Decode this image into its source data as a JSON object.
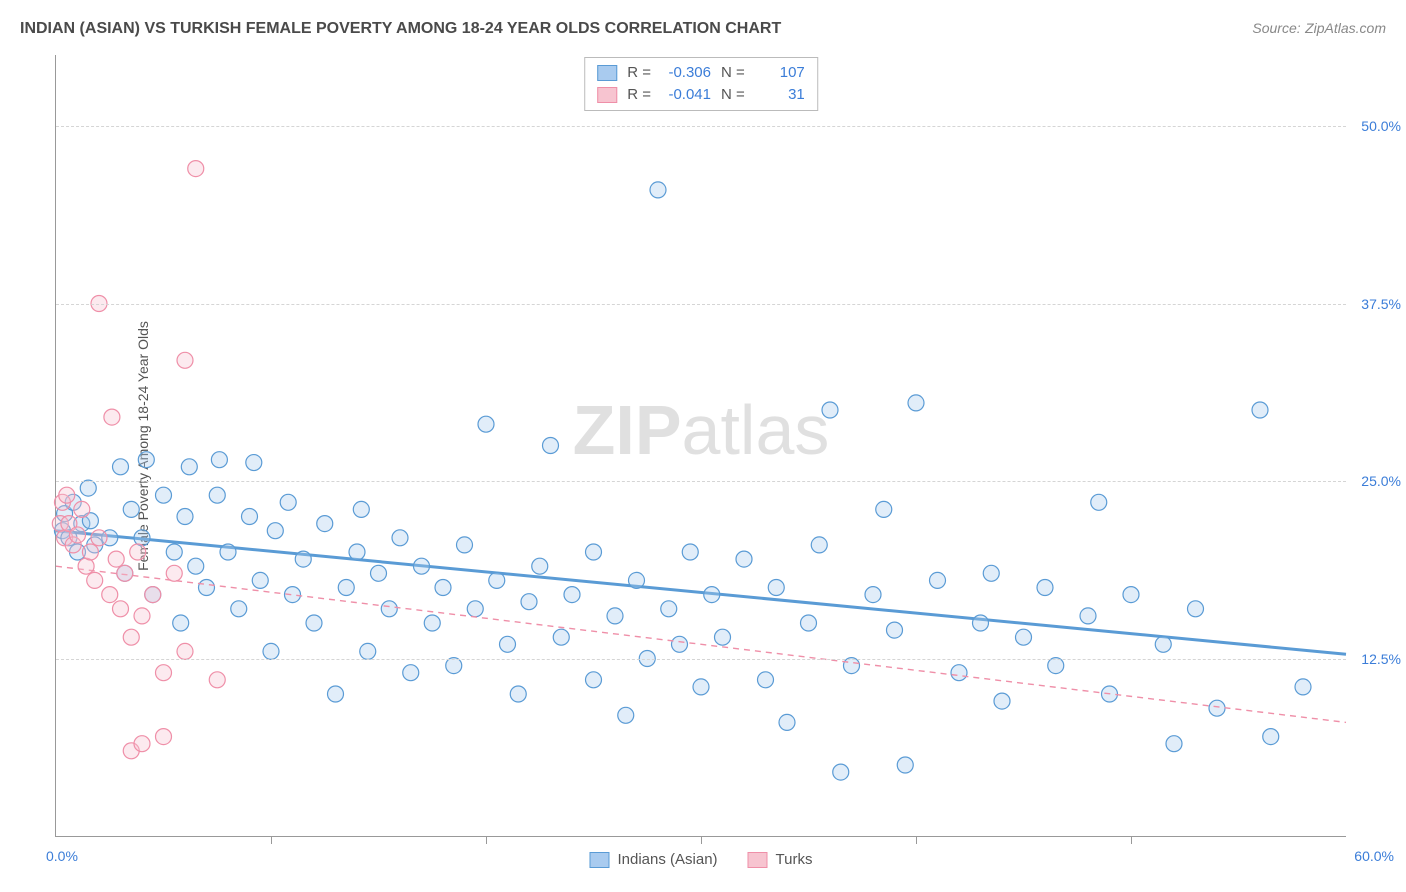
{
  "title": "INDIAN (ASIAN) VS TURKISH FEMALE POVERTY AMONG 18-24 YEAR OLDS CORRELATION CHART",
  "source_label": "Source:",
  "source_name": "ZipAtlas.com",
  "y_axis_label": "Female Poverty Among 18-24 Year Olds",
  "watermark_bold": "ZIP",
  "watermark_light": "atlas",
  "chart": {
    "type": "scatter",
    "xlim": [
      0,
      60
    ],
    "ylim": [
      0,
      55
    ],
    "x_origin_label": "0.0%",
    "x_max_label": "60.0%",
    "x_tick_positions": [
      10,
      20,
      30,
      40,
      50
    ],
    "y_ticks": [
      {
        "v": 12.5,
        "label": "12.5%"
      },
      {
        "v": 25.0,
        "label": "25.0%"
      },
      {
        "v": 37.5,
        "label": "37.5%"
      },
      {
        "v": 50.0,
        "label": "50.0%"
      }
    ],
    "background_color": "#ffffff",
    "grid_color": "#d5d5d5",
    "marker_radius": 8,
    "marker_fill_opacity": 0.35,
    "marker_stroke_width": 1.2,
    "series": [
      {
        "key": "indians",
        "name": "Indians (Asian)",
        "color_stroke": "#5a9bd5",
        "color_fill": "#a9cbef",
        "R_label": "R =",
        "R": "-0.306",
        "N_label": "N =",
        "N": "107",
        "trend": {
          "x1": 0,
          "y1": 21.5,
          "x2": 60,
          "y2": 12.8,
          "width": 3,
          "dash": "none"
        },
        "points": [
          [
            0.3,
            21.5
          ],
          [
            0.4,
            22.7
          ],
          [
            0.6,
            21.0
          ],
          [
            0.8,
            23.5
          ],
          [
            1.0,
            20.0
          ],
          [
            1.2,
            22.0
          ],
          [
            1.5,
            24.5
          ],
          [
            1.6,
            22.2
          ],
          [
            1.8,
            20.5
          ],
          [
            2.5,
            21.0
          ],
          [
            3.0,
            26.0
          ],
          [
            3.2,
            18.5
          ],
          [
            3.5,
            23.0
          ],
          [
            4.0,
            21.0
          ],
          [
            4.2,
            26.5
          ],
          [
            4.5,
            17.0
          ],
          [
            5.0,
            24.0
          ],
          [
            5.5,
            20.0
          ],
          [
            5.8,
            15.0
          ],
          [
            6.0,
            22.5
          ],
          [
            6.2,
            26.0
          ],
          [
            6.5,
            19.0
          ],
          [
            7.0,
            17.5
          ],
          [
            7.5,
            24.0
          ],
          [
            7.6,
            26.5
          ],
          [
            8.0,
            20.0
          ],
          [
            8.5,
            16.0
          ],
          [
            9.0,
            22.5
          ],
          [
            9.2,
            26.3
          ],
          [
            9.5,
            18.0
          ],
          [
            10.0,
            13.0
          ],
          [
            10.2,
            21.5
          ],
          [
            10.8,
            23.5
          ],
          [
            11.0,
            17.0
          ],
          [
            11.5,
            19.5
          ],
          [
            12.0,
            15.0
          ],
          [
            12.5,
            22.0
          ],
          [
            13.0,
            10.0
          ],
          [
            13.5,
            17.5
          ],
          [
            14.0,
            20.0
          ],
          [
            14.2,
            23.0
          ],
          [
            14.5,
            13.0
          ],
          [
            15.0,
            18.5
          ],
          [
            15.5,
            16.0
          ],
          [
            16.0,
            21.0
          ],
          [
            16.5,
            11.5
          ],
          [
            17.0,
            19.0
          ],
          [
            17.5,
            15.0
          ],
          [
            18.0,
            17.5
          ],
          [
            18.5,
            12.0
          ],
          [
            19.0,
            20.5
          ],
          [
            19.5,
            16.0
          ],
          [
            20.0,
            29.0
          ],
          [
            20.5,
            18.0
          ],
          [
            21.0,
            13.5
          ],
          [
            21.5,
            10.0
          ],
          [
            22.0,
            16.5
          ],
          [
            22.5,
            19.0
          ],
          [
            23.0,
            27.5
          ],
          [
            23.5,
            14.0
          ],
          [
            24.0,
            17.0
          ],
          [
            25.0,
            11.0
          ],
          [
            25.0,
            20.0
          ],
          [
            26.0,
            15.5
          ],
          [
            26.5,
            8.5
          ],
          [
            27.0,
            18.0
          ],
          [
            27.5,
            12.5
          ],
          [
            28.0,
            45.5
          ],
          [
            28.5,
            16.0
          ],
          [
            29.0,
            13.5
          ],
          [
            29.5,
            20.0
          ],
          [
            30.0,
            10.5
          ],
          [
            30.5,
            17.0
          ],
          [
            31.0,
            14.0
          ],
          [
            32.0,
            19.5
          ],
          [
            33.0,
            11.0
          ],
          [
            33.5,
            17.5
          ],
          [
            34.0,
            8.0
          ],
          [
            35.0,
            15.0
          ],
          [
            35.5,
            20.5
          ],
          [
            36.0,
            30.0
          ],
          [
            36.5,
            4.5
          ],
          [
            37.0,
            12.0
          ],
          [
            38.0,
            17.0
          ],
          [
            38.5,
            23.0
          ],
          [
            39.0,
            14.5
          ],
          [
            39.5,
            5.0
          ],
          [
            40.0,
            30.5
          ],
          [
            41.0,
            18.0
          ],
          [
            42.0,
            11.5
          ],
          [
            43.0,
            15.0
          ],
          [
            43.5,
            18.5
          ],
          [
            44.0,
            9.5
          ],
          [
            45.0,
            14.0
          ],
          [
            46.0,
            17.5
          ],
          [
            46.5,
            12.0
          ],
          [
            48.0,
            15.5
          ],
          [
            48.5,
            23.5
          ],
          [
            49.0,
            10.0
          ],
          [
            50.0,
            17.0
          ],
          [
            51.5,
            13.5
          ],
          [
            52.0,
            6.5
          ],
          [
            53.0,
            16.0
          ],
          [
            54.0,
            9.0
          ],
          [
            56.0,
            30.0
          ],
          [
            56.5,
            7.0
          ],
          [
            58.0,
            10.5
          ]
        ]
      },
      {
        "key": "turks",
        "name": "Turks",
        "color_stroke": "#ef8fa8",
        "color_fill": "#f7c4d0",
        "R_label": "R =",
        "R": "-0.041",
        "N_label": "N =",
        "N": "31",
        "trend": {
          "x1": 0,
          "y1": 19.0,
          "x2": 60,
          "y2": 8.0,
          "width": 1.4,
          "dash": "6,5"
        },
        "points": [
          [
            0.2,
            22.0
          ],
          [
            0.3,
            23.5
          ],
          [
            0.4,
            21.0
          ],
          [
            0.5,
            24.0
          ],
          [
            0.6,
            22.0
          ],
          [
            0.8,
            20.5
          ],
          [
            1.0,
            21.2
          ],
          [
            1.2,
            23.0
          ],
          [
            1.4,
            19.0
          ],
          [
            1.6,
            20.0
          ],
          [
            1.8,
            18.0
          ],
          [
            2.0,
            21.0
          ],
          [
            2.5,
            17.0
          ],
          [
            2.6,
            29.5
          ],
          [
            2.8,
            19.5
          ],
          [
            3.0,
            16.0
          ],
          [
            3.2,
            18.5
          ],
          [
            3.5,
            14.0
          ],
          [
            3.8,
            20.0
          ],
          [
            4.0,
            15.5
          ],
          [
            2.0,
            37.5
          ],
          [
            4.5,
            17.0
          ],
          [
            5.0,
            11.5
          ],
          [
            5.5,
            18.5
          ],
          [
            6.0,
            13.0
          ],
          [
            6.5,
            47.0
          ],
          [
            7.5,
            11.0
          ],
          [
            3.5,
            6.0
          ],
          [
            4.0,
            6.5
          ],
          [
            5.0,
            7.0
          ],
          [
            6.0,
            33.5
          ]
        ]
      }
    ]
  }
}
